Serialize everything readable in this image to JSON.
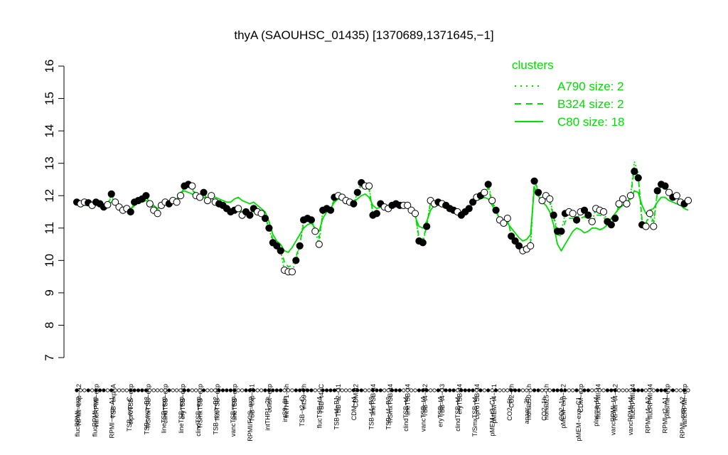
{
  "chart_data": {
    "type": "line",
    "title": "thyA (SAOUHSC_01435) [1370689,1371645,−1]",
    "xlabel": "",
    "ylabel": "",
    "ylim": [
      7,
      16
    ],
    "yticks": [
      7,
      8,
      9,
      10,
      11,
      12,
      13,
      14,
      15,
      16
    ],
    "grid": false,
    "legend": {
      "title": "clusters",
      "placement": "top-right",
      "entries": [
        {
          "label": "A790 size: 2",
          "style": "dotted"
        },
        {
          "label": "B324 size: 2",
          "style": "dashed"
        },
        {
          "label": "C80 size: 18",
          "style": "solid"
        }
      ]
    },
    "colors": {
      "cluster_line": "#00dd00",
      "point_stroke": "#000000",
      "open_fill": "#ffffff",
      "filled_fill": "#000000"
    },
    "top_labels": [
      "RPMI−exp−A2",
      "vancRPMI−exp",
      "TSB−exp−A",
      "ciproTSB−exp",
      "T/SmxTSB−exp",
      "clindTSB−exp",
      "eryTSB−exp",
      "T/SmxTSB−exp",
      "flucTSB−exp",
      "lineTSB−exp",
      "TSB−exp−B1",
      "colist−exp",
      "intTHP1−6h",
      "intS9−2h",
      "TSB−t4−C",
      "TSB−t2−B1",
      "CDM−t2",
      "lineTSB−t4",
      "T/SmxTSB−t4",
      "lineTSB−t4",
      "TSB−t4−B2",
      "TSB−t4−B3",
      "eryTSB−t4",
      "ciproTSB−t4",
      "pMEM−t4−C1",
      "CO2−2h",
      "nonad50−1h",
      "nonad25−1h",
      "pMEM−exp−C2",
      "CDM−exp",
      "flucRPMI−t4",
      "RPMI−t4−A2",
      "flucRPMI−t4",
      "flucRPMI−t4",
      "plasma−exp",
      "vancRPMI−exp"
    ],
    "bottom_labels": [
      "flucRPMI−exp",
      "flucRPMI−exp",
      "RPMI−exp−A1",
      "TSB−exp−C",
      "TSB−exp−B3",
      "lineTSB−exp",
      "lineTSB−exp",
      "clindTSB−exp",
      "TSB−exp−B2",
      "vancTSB−exp",
      "RPMI/FCS−exp",
      "intTHP1−2h",
      "intS9−6h",
      "TSB−t2−C",
      "flucTSB−t4",
      "TSB−t4−B1",
      "CDM−t4",
      "TSB−t4−B3",
      "TSB−t4−B3",
      "clindTSB−t4",
      "vancTSB−t4",
      "eryTSB−t4",
      "clindTSB−t4",
      "T/SmxTSB−t4",
      "pMEM−t2−C1",
      "CO2−6h",
      "anaer−2h",
      "CO2−1h",
      "CO2−1h",
      "pMEM−exp−C1",
      "plasma−t4",
      "vancRPMI−t4",
      "vancRPMI−t4",
      "RPMI−t4−A2",
      "RPMI−t2−A1",
      "RPMI−exp−A2"
    ],
    "x": [
      1,
      2,
      3,
      4,
      5,
      6,
      7,
      8,
      9,
      10,
      11,
      12,
      13,
      14,
      15,
      16,
      17,
      18,
      19,
      20,
      21,
      22,
      23,
      24,
      25,
      26,
      27,
      28,
      29,
      30,
      31,
      32,
      33,
      34,
      35,
      36,
      37,
      38,
      39,
      40,
      41,
      42,
      43,
      44,
      45,
      46,
      47,
      48,
      49,
      50,
      51,
      52,
      53,
      54,
      55,
      56,
      57,
      58,
      59,
      60,
      61,
      62,
      63,
      64,
      65,
      66,
      67,
      68,
      69,
      70,
      71,
      72,
      73,
      74,
      75,
      76,
      77,
      78,
      79,
      80,
      81,
      82,
      83,
      84,
      85,
      86,
      87,
      88,
      89,
      90,
      91,
      92,
      93,
      94,
      95,
      96,
      97,
      98,
      99,
      100,
      101,
      102,
      103,
      104,
      105,
      106,
      107,
      108,
      109,
      110,
      111,
      112,
      113,
      114,
      115,
      116,
      117,
      118,
      119,
      120,
      121,
      122,
      123,
      124,
      125,
      126,
      127,
      128,
      129,
      130,
      131,
      132,
      133,
      134,
      135,
      136,
      137,
      138,
      139,
      140,
      141,
      142,
      143,
      144,
      145,
      146,
      147,
      148,
      149,
      150,
      151,
      152,
      153,
      154,
      155,
      156,
      157,
      158,
      159,
      160
    ],
    "points": {
      "values": [
        11.8,
        11.75,
        11.8,
        11.78,
        11.7,
        11.8,
        11.75,
        11.65,
        11.72,
        12.05,
        11.8,
        11.65,
        11.55,
        11.6,
        11.5,
        11.8,
        11.85,
        11.9,
        12.0,
        11.75,
        11.55,
        11.45,
        11.7,
        11.8,
        11.75,
        11.85,
        11.8,
        12.0,
        12.3,
        12.35,
        12.3,
        12.0,
        11.95,
        12.1,
        11.85,
        12.0,
        11.8,
        11.75,
        11.7,
        11.6,
        11.5,
        11.55,
        11.6,
        11.4,
        11.5,
        11.4,
        11.6,
        11.5,
        11.45,
        11.3,
        11.0,
        10.55,
        10.45,
        10.3,
        9.7,
        9.65,
        9.65,
        10.0,
        10.45,
        11.25,
        11.3,
        11.25,
        10.9,
        10.5,
        11.55,
        11.6,
        11.55,
        11.95,
        12.0,
        11.95,
        11.85,
        11.8,
        11.75,
        12.1,
        12.4,
        12.3,
        12.3,
        11.4,
        11.45,
        11.75,
        11.65,
        11.6,
        11.7,
        11.75,
        11.7,
        11.7,
        11.7,
        11.55,
        11.45,
        10.6,
        10.55,
        11.05,
        11.85,
        11.75,
        11.8,
        11.75,
        11.7,
        11.6,
        11.55,
        11.5,
        11.4,
        11.5,
        11.6,
        11.8,
        11.95,
        12.0,
        12.1,
        12.35,
        11.85,
        11.55,
        11.25,
        11.15,
        11.3,
        10.75,
        10.6,
        10.45,
        10.3,
        10.35,
        10.45,
        12.45,
        12.1,
        11.85,
        12.0,
        11.9,
        11.4,
        10.9,
        10.9,
        11.45,
        11.5,
        11.45,
        11.25,
        11.5,
        11.55,
        11.4,
        11.2,
        11.6,
        11.55,
        11.5,
        11.2,
        11.1,
        11.3,
        11.75,
        11.9,
        11.75,
        12.0,
        12.75,
        12.55,
        11.1,
        11.05,
        11.45,
        11.05,
        12.15,
        12.35,
        12.3,
        12.1,
        11.95,
        12.0,
        11.8,
        11.75,
        11.85
      ],
      "filled": [
        1,
        0,
        0,
        1,
        0,
        1,
        1,
        1,
        0,
        1,
        0,
        0,
        0,
        0,
        1,
        1,
        1,
        1,
        1,
        0,
        0,
        0,
        0,
        0,
        1,
        0,
        0,
        0,
        1,
        1,
        0,
        0,
        0,
        1,
        0,
        0,
        0,
        1,
        1,
        1,
        1,
        1,
        0,
        0,
        1,
        1,
        1,
        0,
        0,
        1,
        1,
        1,
        1,
        1,
        0,
        0,
        0,
        1,
        1,
        1,
        1,
        1,
        0,
        0,
        1,
        1,
        1,
        1,
        0,
        0,
        0,
        0,
        1,
        1,
        1,
        0,
        0,
        1,
        1,
        1,
        0,
        0,
        1,
        1,
        1,
        0,
        0,
        0,
        0,
        1,
        1,
        1,
        0,
        0,
        1,
        0,
        1,
        1,
        1,
        0,
        1,
        1,
        1,
        1,
        0,
        1,
        0,
        1,
        0,
        1,
        0,
        0,
        0,
        1,
        1,
        1,
        0,
        0,
        0,
        1,
        1,
        0,
        0,
        0,
        1,
        1,
        1,
        1,
        0,
        0,
        1,
        0,
        1,
        1,
        0,
        0,
        0,
        0,
        1,
        1,
        1,
        0,
        0,
        0,
        0,
        1,
        1,
        1,
        0,
        0,
        0,
        1,
        1,
        1,
        0,
        1,
        0,
        0,
        1,
        0
      ]
    },
    "series": [
      {
        "style": "solid",
        "values": [
          11.75,
          11.75,
          11.7,
          11.7,
          11.65,
          11.7,
          11.75,
          11.7,
          11.75,
          11.8,
          11.75,
          11.65,
          11.55,
          11.55,
          11.6,
          11.7,
          11.8,
          11.8,
          11.85,
          11.8,
          11.7,
          11.6,
          11.7,
          11.75,
          11.8,
          11.85,
          11.9,
          12.1,
          12.15,
          12.1,
          12.05,
          12.0,
          11.95,
          11.95,
          11.9,
          12.0,
          11.95,
          11.9,
          11.85,
          11.8,
          11.8,
          11.9,
          11.95,
          11.85,
          11.8,
          11.75,
          11.8,
          11.7,
          11.6,
          11.5,
          11.2,
          10.8,
          10.6,
          10.5,
          10.3,
          10.25,
          10.4,
          10.6,
          10.8,
          11.0,
          11.1,
          11.15,
          11.0,
          10.9,
          11.3,
          11.5,
          11.6,
          11.8,
          11.9,
          11.9,
          11.85,
          11.8,
          11.8,
          11.9,
          12.0,
          12.05,
          11.95,
          11.7,
          11.6,
          11.65,
          11.7,
          11.7,
          11.75,
          11.7,
          11.7,
          11.7,
          11.65,
          11.55,
          11.35,
          11.05,
          11.0,
          11.2,
          11.55,
          11.7,
          11.7,
          11.7,
          11.65,
          11.6,
          11.55,
          11.5,
          11.5,
          11.55,
          11.65,
          11.75,
          11.85,
          11.9,
          11.95,
          11.9,
          11.7,
          11.5,
          11.3,
          11.2,
          11.15,
          11.0,
          10.85,
          10.7,
          10.6,
          10.65,
          10.8,
          12.25,
          12.0,
          11.8,
          11.7,
          11.5,
          11.1,
          10.5,
          10.3,
          10.5,
          10.7,
          10.9,
          11.0,
          10.95,
          10.85,
          10.9,
          11.0,
          11.0,
          10.95,
          11.0,
          11.1,
          11.3,
          11.45,
          11.6,
          11.7,
          11.8,
          11.9,
          12.15,
          12.1,
          11.7,
          11.45,
          11.55,
          11.6,
          11.8,
          11.95,
          11.95,
          11.85,
          11.8,
          11.75,
          11.7,
          11.6,
          11.55
        ]
      },
      {
        "style": "dashed",
        "values": [
          11.8,
          11.7,
          11.75,
          11.75,
          11.7,
          11.75,
          11.75,
          11.7,
          11.75,
          11.95,
          11.8,
          11.7,
          11.6,
          11.6,
          11.55,
          11.7,
          11.8,
          11.85,
          11.95,
          11.8,
          11.6,
          11.5,
          11.7,
          11.75,
          11.8,
          11.85,
          11.85,
          12.05,
          12.25,
          12.3,
          12.2,
          12.0,
          11.95,
          12.05,
          11.9,
          11.95,
          11.8,
          11.75,
          11.7,
          11.6,
          11.55,
          11.6,
          11.6,
          11.5,
          11.5,
          11.45,
          11.6,
          11.5,
          11.45,
          11.3,
          11.05,
          10.65,
          10.5,
          10.35,
          9.95,
          9.8,
          9.85,
          10.1,
          10.5,
          11.15,
          11.25,
          11.25,
          10.95,
          10.7,
          11.45,
          11.55,
          11.55,
          11.9,
          11.95,
          11.9,
          11.85,
          11.8,
          11.75,
          12.05,
          12.3,
          12.25,
          12.2,
          11.5,
          11.5,
          11.7,
          11.65,
          11.6,
          11.7,
          11.75,
          11.7,
          11.7,
          11.7,
          11.55,
          11.45,
          10.7,
          10.65,
          11.05,
          11.8,
          11.75,
          11.75,
          11.75,
          11.7,
          11.6,
          11.55,
          11.5,
          11.45,
          11.5,
          11.6,
          11.75,
          11.9,
          11.95,
          12.05,
          12.25,
          11.8,
          11.55,
          11.3,
          11.2,
          11.25,
          10.8,
          10.65,
          10.5,
          10.4,
          10.45,
          10.55,
          12.5,
          12.15,
          11.85,
          11.9,
          11.8,
          11.35,
          10.8,
          10.75,
          11.2,
          11.3,
          11.3,
          11.15,
          11.3,
          11.35,
          11.25,
          11.1,
          11.4,
          11.4,
          11.35,
          11.15,
          11.1,
          11.3,
          11.7,
          11.85,
          11.75,
          11.95,
          12.85,
          12.6,
          11.25,
          11.15,
          11.45,
          11.2,
          12.1,
          12.3,
          12.25,
          12.05,
          11.95,
          11.95,
          11.8,
          11.7,
          11.75
        ]
      },
      {
        "style": "dotted",
        "values": [
          11.8,
          11.75,
          11.8,
          11.78,
          11.7,
          11.8,
          11.75,
          11.65,
          11.72,
          12.05,
          11.8,
          11.65,
          11.55,
          11.6,
          11.5,
          11.8,
          11.85,
          11.9,
          12.0,
          11.75,
          11.55,
          11.45,
          11.7,
          11.8,
          11.75,
          11.85,
          11.8,
          12.0,
          12.3,
          12.35,
          12.3,
          12.0,
          11.95,
          12.1,
          11.85,
          12.0,
          11.8,
          11.75,
          11.7,
          11.6,
          11.5,
          11.55,
          11.6,
          11.4,
          11.5,
          11.4,
          11.6,
          11.5,
          11.45,
          11.3,
          11.0,
          10.55,
          10.45,
          10.3,
          9.7,
          9.65,
          9.65,
          10.0,
          10.45,
          11.25,
          11.3,
          11.25,
          10.9,
          10.5,
          11.55,
          11.6,
          11.55,
          11.95,
          12.0,
          11.95,
          11.85,
          11.8,
          11.75,
          12.1,
          12.4,
          12.3,
          12.3,
          11.4,
          11.45,
          11.75,
          11.65,
          11.6,
          11.7,
          11.75,
          11.7,
          11.7,
          11.7,
          11.55,
          11.45,
          10.6,
          10.55,
          11.05,
          11.85,
          11.75,
          11.8,
          11.75,
          11.7,
          11.6,
          11.55,
          11.5,
          11.4,
          11.5,
          11.6,
          11.8,
          11.95,
          12.0,
          12.1,
          12.35,
          11.85,
          11.55,
          11.25,
          11.15,
          11.3,
          10.75,
          10.6,
          10.45,
          10.3,
          10.35,
          10.45,
          12.45,
          12.1,
          11.85,
          12.0,
          11.9,
          11.4,
          10.9,
          10.9,
          11.45,
          11.5,
          11.45,
          11.25,
          11.5,
          11.55,
          11.4,
          11.2,
          11.6,
          11.55,
          11.5,
          11.2,
          11.1,
          11.3,
          11.75,
          11.9,
          11.75,
          12.0,
          13.05,
          12.7,
          11.1,
          11.05,
          11.45,
          11.05,
          12.15,
          12.35,
          12.3,
          12.1,
          11.95,
          12.0,
          11.8,
          11.75,
          11.85
        ]
      }
    ]
  }
}
